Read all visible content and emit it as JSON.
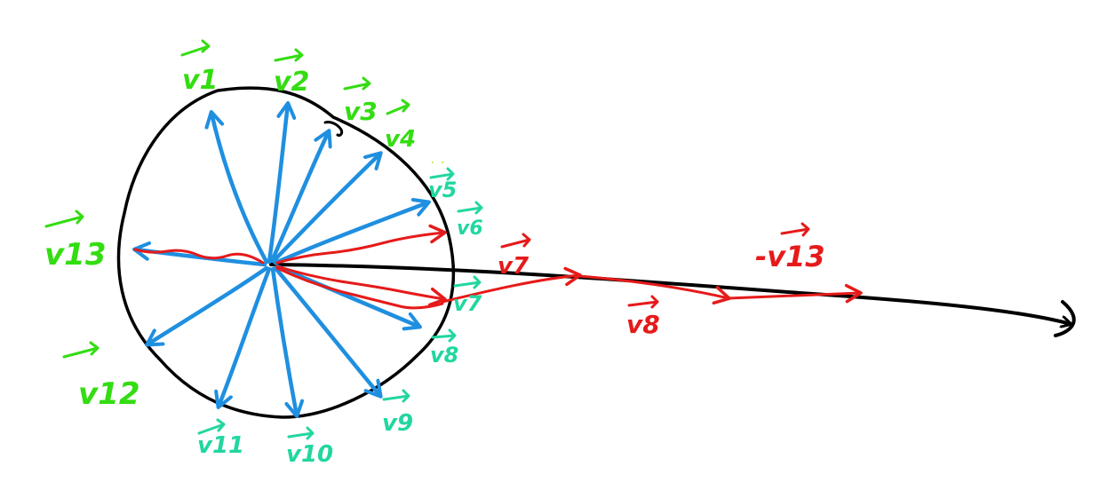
{
  "colors": {
    "ink": "#000000",
    "vector_blue": "#1f8fe0",
    "sum_red": "#e61a1a",
    "label_green": "#33dd11",
    "label_teal": "#22d6a0"
  },
  "labels": {
    "v1": "v1",
    "v2": "v2",
    "v3": "v3",
    "v4": "v4",
    "v5": "v5",
    "v6": "v6",
    "v7": "v7",
    "v8": "v8",
    "v9": "v9",
    "v10": "v10",
    "v11": "v11",
    "v12": "v12",
    "v13": "v13",
    "red_v7": "v7",
    "red_v8": "v8",
    "red_neg_v13": "-v13"
  }
}
